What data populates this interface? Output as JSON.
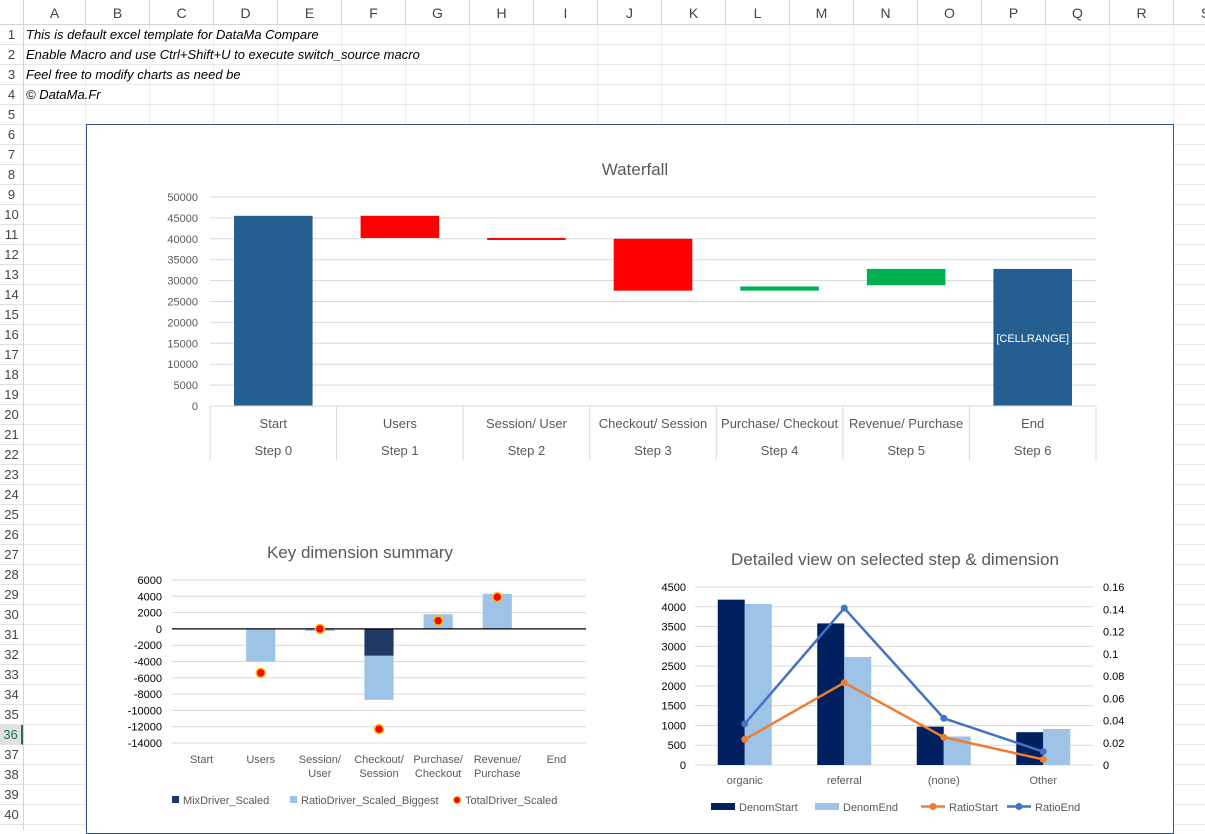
{
  "spreadsheet": {
    "columns": [
      "A",
      "B",
      "C",
      "D",
      "E",
      "F",
      "G",
      "H",
      "I",
      "J",
      "K",
      "L",
      "M",
      "N",
      "O",
      "P",
      "Q",
      "R",
      "S"
    ],
    "rows": [
      "1",
      "2",
      "3",
      "4",
      "5",
      "6",
      "7",
      "8",
      "9",
      "10",
      "11",
      "12",
      "13",
      "14",
      "15",
      "16",
      "17",
      "18",
      "19",
      "20",
      "21",
      "22",
      "23",
      "24",
      "25",
      "26",
      "27",
      "28",
      "29",
      "30",
      "31",
      "32",
      "33",
      "34",
      "35",
      "36",
      "37",
      "38",
      "39",
      "40"
    ],
    "selected_row": "36",
    "cells": {
      "a1": "This is default excel template for DataMa Compare",
      "a2": "Enable Macro and use Ctrl+Shift+U to execute switch_source macro",
      "a3": "Feel free to modify charts as need be",
      "a4": "© DataMa.Fr"
    }
  },
  "colors": {
    "dark_blue": "#255e91",
    "navy": "#002060",
    "light_blue": "#9dc3e6",
    "red": "#ff0000",
    "green": "#00b050",
    "orange": "#ed7d31",
    "mid_blue": "#4472c4",
    "dot_fill": "#ff0000",
    "dot_stroke": "#ffc000",
    "mix_blue": "#203864"
  },
  "chart_data": [
    {
      "type": "bar",
      "title": "Waterfall",
      "categories": [
        "Start",
        "Users",
        "Session/ User",
        "Checkout/ Session",
        "Purchase/ Checkout",
        "Revenue/ Purchase",
        "End"
      ],
      "steps": [
        "Step 0",
        "Step 1",
        "Step 2",
        "Step 3",
        "Step 4",
        "Step 5",
        "Step 6"
      ],
      "bars": [
        {
          "low": 0,
          "high": 45500,
          "kind": "total"
        },
        {
          "low": 40200,
          "high": 45500,
          "kind": "decrease"
        },
        {
          "low": 40000,
          "high": 40200,
          "kind": "decrease"
        },
        {
          "low": 27600,
          "high": 40000,
          "kind": "decrease"
        },
        {
          "low": 27600,
          "high": 28600,
          "kind": "increase"
        },
        {
          "low": 28900,
          "high": 32800,
          "kind": "increase"
        },
        {
          "low": 0,
          "high": 32800,
          "kind": "total"
        }
      ],
      "end_label": "[CELLRANGE]",
      "yticks": [
        0,
        5000,
        10000,
        15000,
        20000,
        25000,
        30000,
        35000,
        40000,
        45000,
        50000
      ],
      "ylim": [
        0,
        50000
      ],
      "grid": true
    },
    {
      "type": "bar",
      "title": "Key dimension summary",
      "categories": [
        "Start",
        "Users",
        "Session/ User",
        "Checkout/ Session",
        "Purchase/ Checkout",
        "Revenue/ Purchase",
        "End"
      ],
      "series": [
        {
          "name": "MixDriver_Scaled",
          "values": [
            0,
            0,
            0,
            -3300,
            0,
            0,
            0
          ]
        },
        {
          "name": "RatioDriver_Scaled_Biggest",
          "values": [
            0,
            -4000,
            -200,
            -5400,
            1800,
            4300,
            0
          ]
        },
        {
          "name": "TotalDriver_Scaled",
          "values": [
            null,
            -5400,
            0,
            -12300,
            1000,
            3900,
            null
          ]
        }
      ],
      "yticks": [
        6000,
        4000,
        2000,
        0,
        -2000,
        -4000,
        -6000,
        -8000,
        -10000,
        -12000,
        -14000
      ],
      "ylim": [
        -14000,
        6000
      ],
      "legend": "bottom",
      "grid": true
    },
    {
      "type": "bar",
      "title": "Detailed view on selected step & dimension",
      "categories": [
        "organic",
        "referral",
        "(none)",
        "Other"
      ],
      "series": [
        {
          "name": "DenomStart",
          "values": [
            4180,
            3580,
            970,
            830
          ],
          "axis": "left"
        },
        {
          "name": "DenomEnd",
          "values": [
            4070,
            2730,
            720,
            910
          ],
          "axis": "left"
        },
        {
          "name": "RatioStart",
          "values": [
            0.023,
            0.074,
            0.025,
            0.005
          ],
          "axis": "right"
        },
        {
          "name": "RatioEnd",
          "values": [
            0.037,
            0.141,
            0.042,
            0.012
          ],
          "axis": "right"
        }
      ],
      "yticks_left": [
        0,
        500,
        1000,
        1500,
        2000,
        2500,
        3000,
        3500,
        4000,
        4500
      ],
      "ylim_left": [
        0,
        4500
      ],
      "yticks_right": [
        "0",
        "0.02",
        "0.04",
        "0.06",
        "0.08",
        "0.1",
        "0.12",
        "0.14",
        "0.16"
      ],
      "ylim_right": [
        0,
        0.16
      ],
      "legend": "bottom",
      "grid": true
    }
  ]
}
